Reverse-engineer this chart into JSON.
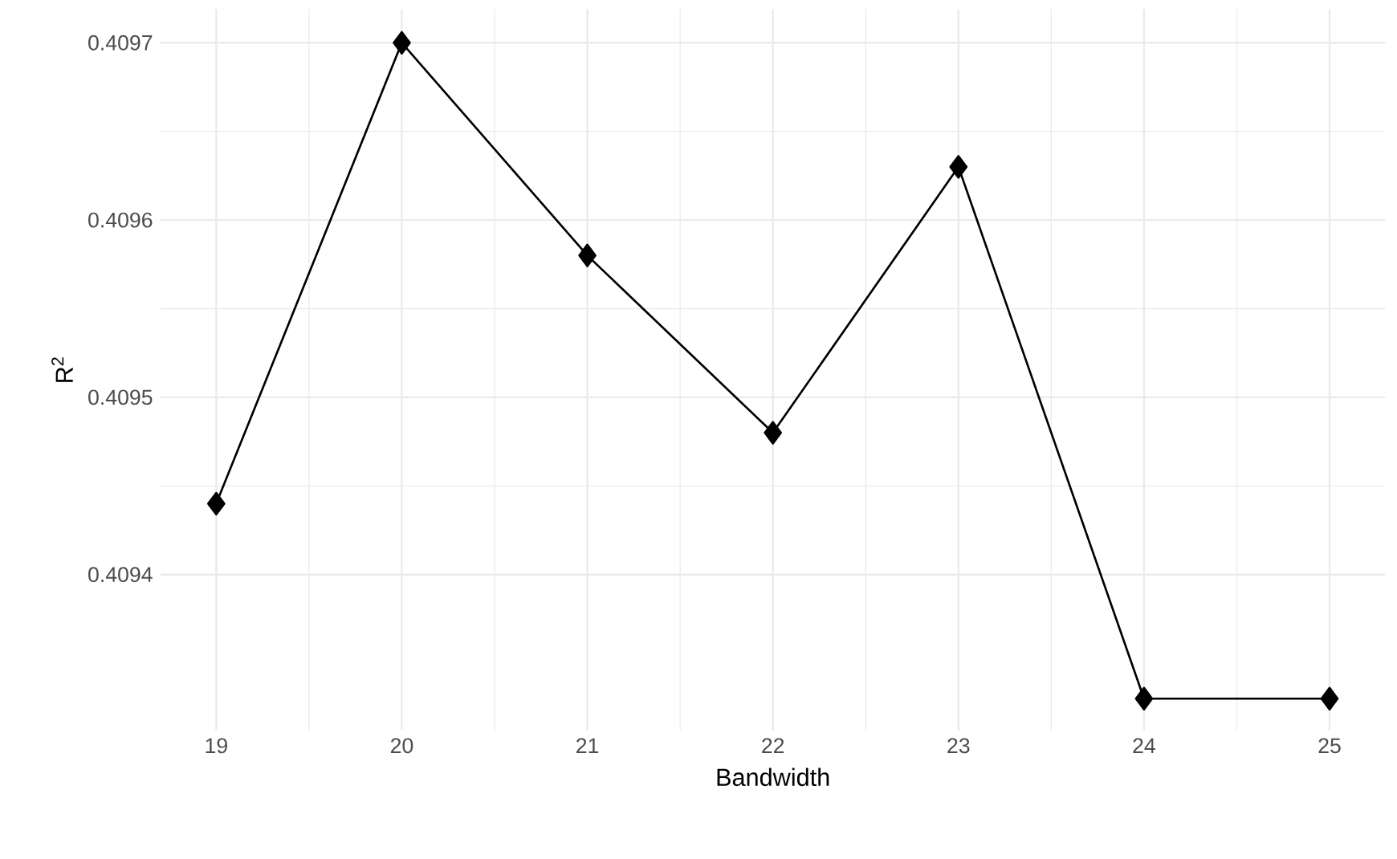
{
  "chart_data": {
    "type": "line",
    "xlabel": "Bandwidth",
    "ylabel": "R$^{2}$",
    "x": [
      19,
      20,
      21,
      22,
      23,
      24,
      25
    ],
    "values": [
      0.40944,
      0.4097,
      0.40958,
      0.40948,
      0.40963,
      0.40933,
      0.40933
    ],
    "color": "#000000",
    "marker": "diamond",
    "line_style": "solid",
    "grid": true,
    "xlim": [
      18.7,
      25.3
    ],
    "ylim": [
      0.409312,
      0.409719
    ],
    "xticks": [
      19,
      20,
      21,
      22,
      23,
      24,
      25
    ],
    "yticks": [
      0.4094,
      0.4095,
      0.4096,
      0.4097
    ]
  }
}
